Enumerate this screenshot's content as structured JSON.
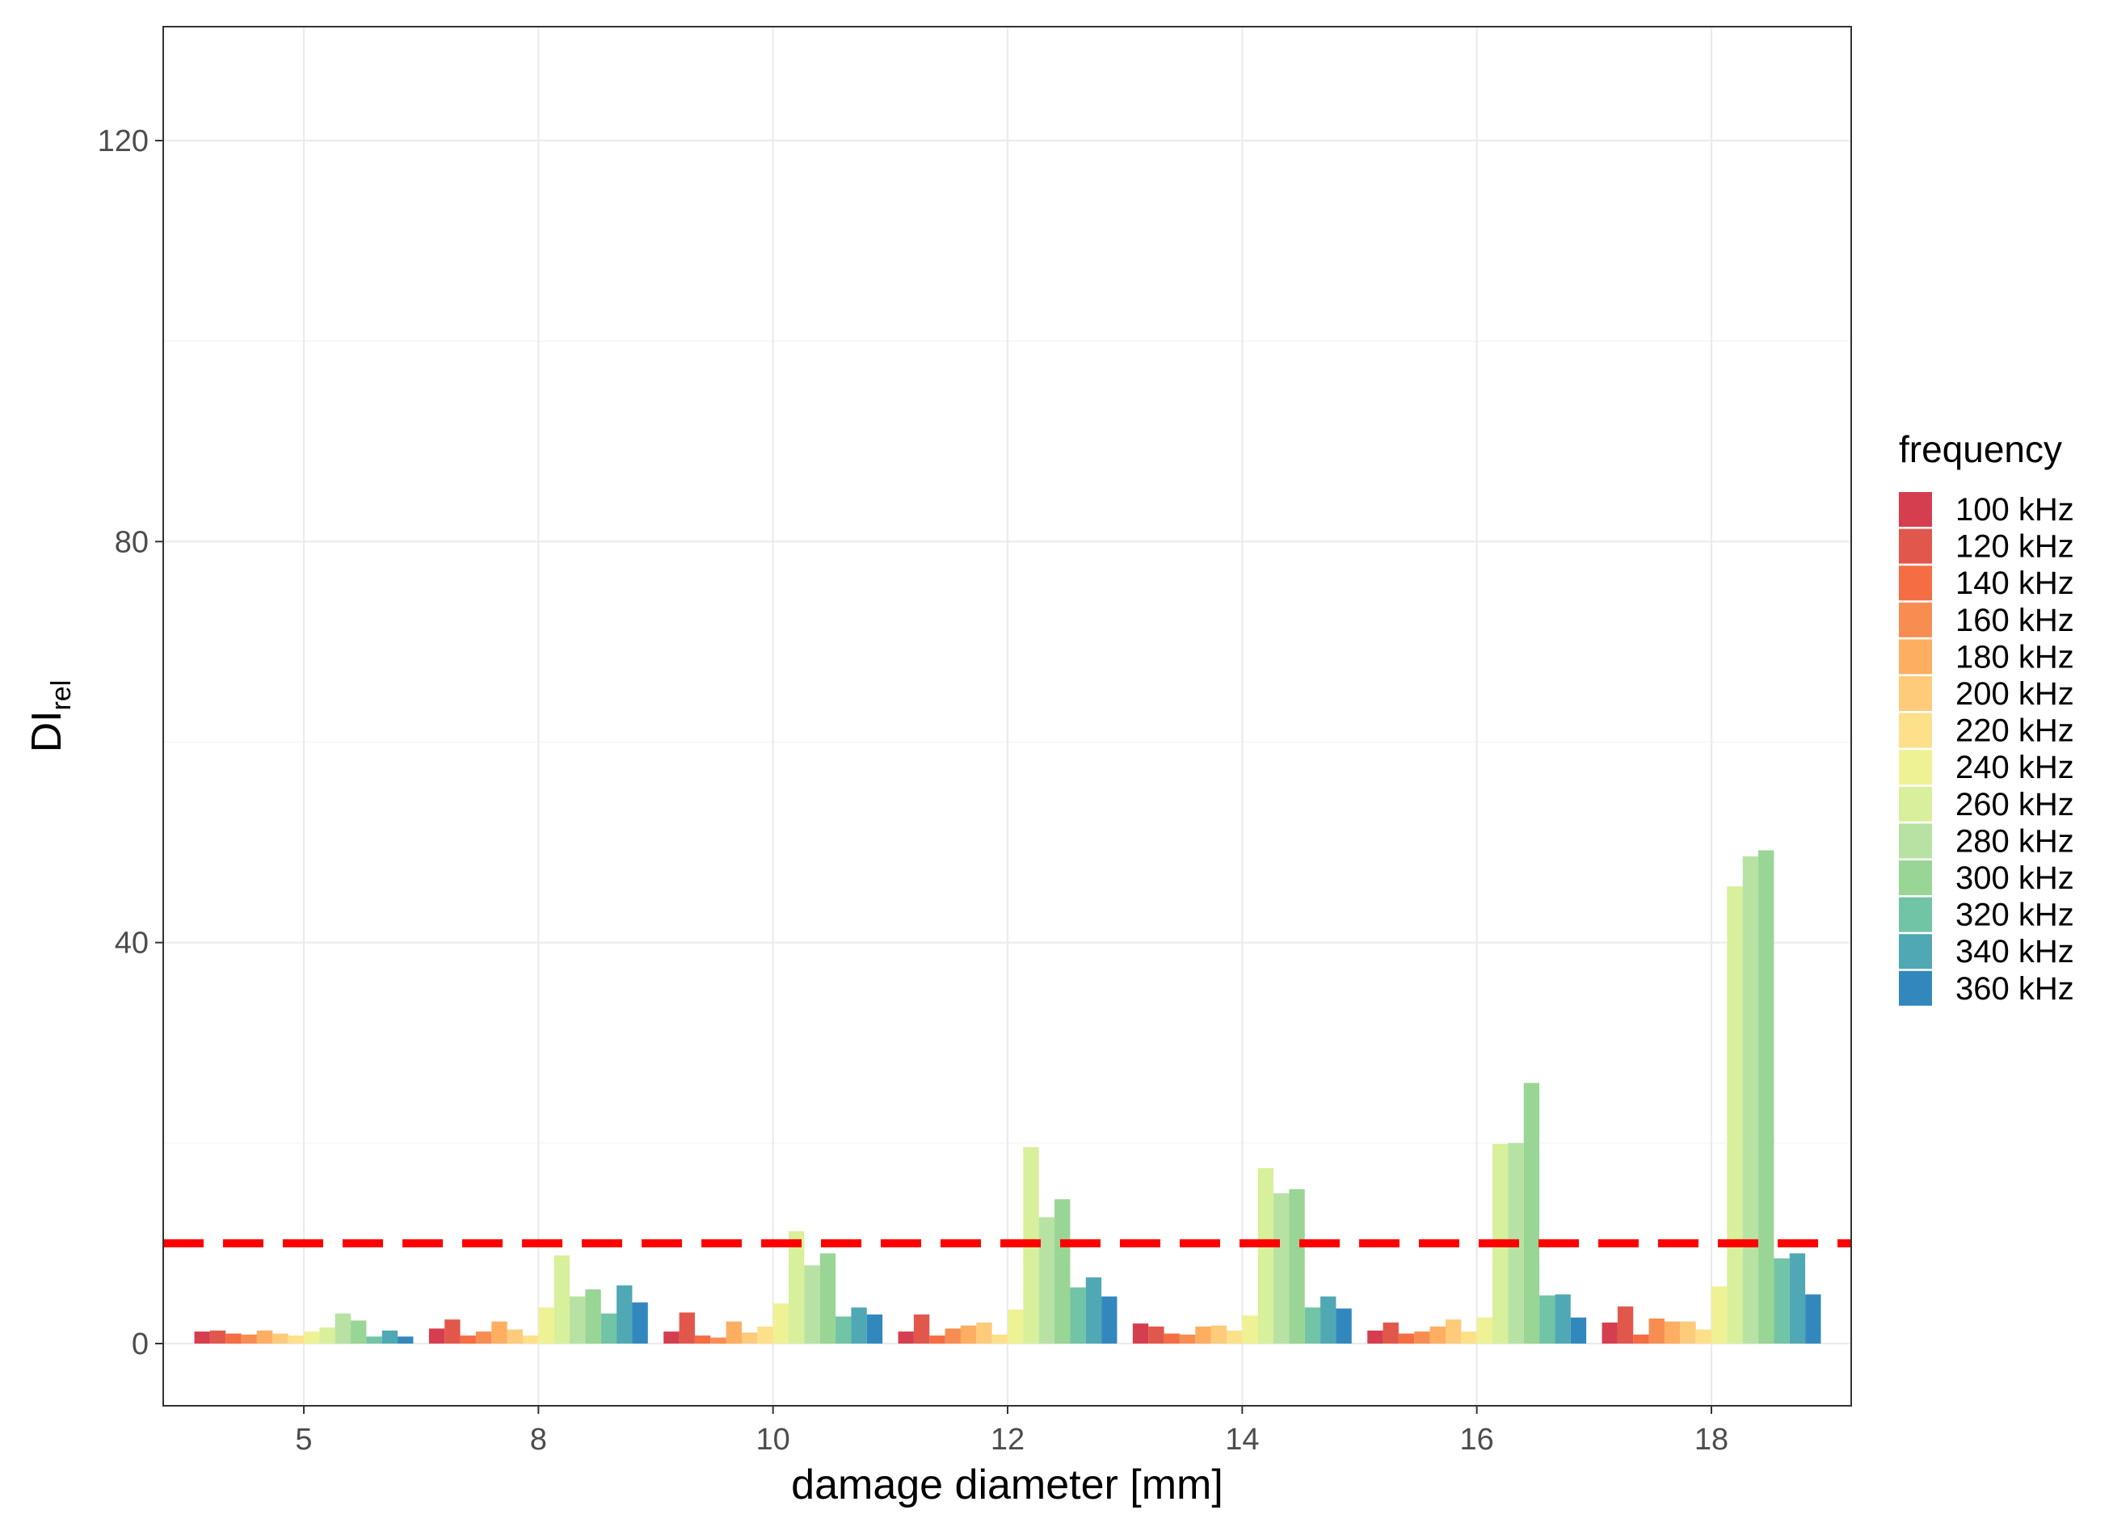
{
  "chart_data": {
    "type": "bar",
    "xlabel": "damage diameter [mm]",
    "ylabel": {
      "main": "DI",
      "subscript": "rel"
    },
    "ylim": [
      -6,
      132
    ],
    "yticks": [
      0,
      40,
      80,
      120
    ],
    "grid": true,
    "legend_position": "right",
    "legend_title": "frequency",
    "categories": [
      "5",
      "8",
      "10",
      "12",
      "14",
      "16",
      "18"
    ],
    "threshold": {
      "value": 10,
      "color": "#ff0000",
      "style": "dashed"
    },
    "series": [
      {
        "name": "100 kHz",
        "color": "#d53e4f",
        "values": [
          1.2,
          1.5,
          1.2,
          1.2,
          2.0,
          1.3,
          2.1
        ]
      },
      {
        "name": "120 kHz",
        "color": "#e2574c",
        "values": [
          1.3,
          2.4,
          3.1,
          2.9,
          1.7,
          2.1,
          3.7
        ]
      },
      {
        "name": "140 kHz",
        "color": "#f46d43",
        "values": [
          1.0,
          0.8,
          0.8,
          0.8,
          1.0,
          1.0,
          0.9
        ]
      },
      {
        "name": "160 kHz",
        "color": "#f88d52",
        "values": [
          0.9,
          1.2,
          0.6,
          1.5,
          0.9,
          1.2,
          2.5
        ]
      },
      {
        "name": "180 kHz",
        "color": "#fdae61",
        "values": [
          1.3,
          2.2,
          2.2,
          1.8,
          1.7,
          1.7,
          2.2
        ]
      },
      {
        "name": "200 kHz",
        "color": "#fdcb7a",
        "values": [
          1.0,
          1.4,
          1.1,
          2.1,
          1.8,
          2.4,
          2.2
        ]
      },
      {
        "name": "220 kHz",
        "color": "#fee08b",
        "values": [
          0.8,
          0.8,
          1.7,
          0.9,
          1.3,
          1.2,
          1.4
        ]
      },
      {
        "name": "240 kHz",
        "color": "#eef294",
        "values": [
          1.2,
          3.6,
          4.0,
          3.4,
          2.8,
          2.6,
          5.7
        ]
      },
      {
        "name": "260 kHz",
        "color": "#d8ef9b",
        "values": [
          1.6,
          8.8,
          11.2,
          19.6,
          17.5,
          19.9,
          45.6
        ]
      },
      {
        "name": "280 kHz",
        "color": "#b7e2a4",
        "values": [
          3.0,
          4.7,
          7.8,
          12.6,
          15.0,
          20.0,
          48.6
        ]
      },
      {
        "name": "300 kHz",
        "color": "#99d594",
        "values": [
          2.3,
          5.4,
          9.0,
          14.4,
          15.4,
          26.0,
          49.2
        ]
      },
      {
        "name": "320 kHz",
        "color": "#71c4a5",
        "values": [
          0.7,
          3.0,
          2.7,
          5.6,
          3.6,
          4.8,
          8.5
        ]
      },
      {
        "name": "340 kHz",
        "color": "#4fa8b4",
        "values": [
          1.3,
          5.8,
          3.6,
          6.6,
          4.7,
          4.9,
          9.0
        ]
      },
      {
        "name": "360 kHz",
        "color": "#3288bd",
        "values": [
          0.7,
          4.1,
          2.9,
          4.7,
          3.5,
          2.6,
          4.9
        ]
      }
    ]
  }
}
